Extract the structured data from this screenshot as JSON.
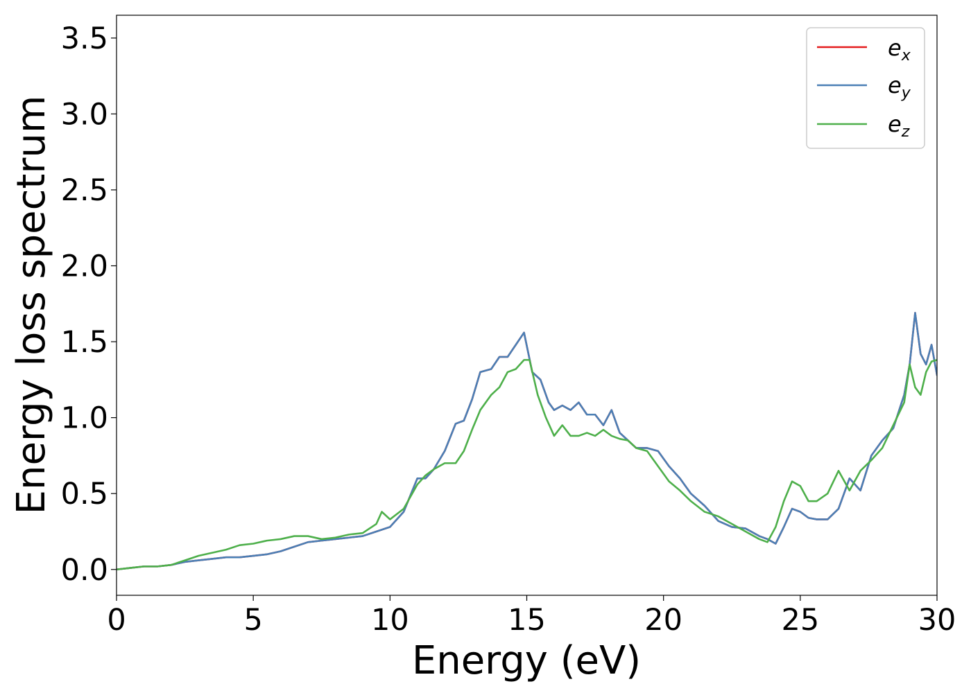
{
  "chart_data": {
    "type": "line",
    "title": "",
    "xlabel": "Energy (eV)",
    "ylabel": "Energy loss spectrum",
    "xlim": [
      0,
      30
    ],
    "ylim": [
      -0.17,
      3.65
    ],
    "xticks": [
      0,
      5,
      10,
      15,
      20,
      25,
      30
    ],
    "xtick_labels": [
      "0",
      "5",
      "10",
      "15",
      "20",
      "25",
      "30"
    ],
    "yticks": [
      0.0,
      0.5,
      1.0,
      1.5,
      2.0,
      2.5,
      3.0,
      3.5
    ],
    "ytick_labels": [
      "0.0",
      "0.5",
      "1.0",
      "1.5",
      "2.0",
      "2.5",
      "3.0",
      "3.5"
    ],
    "grid": false,
    "legend_position": "top-right",
    "series": [
      {
        "name": "e_x",
        "label_main": "e",
        "label_sub": "x",
        "color": "#e41a1c",
        "x": [
          0,
          0.5,
          1,
          1.5,
          2,
          2.5,
          3,
          3.5,
          4,
          4.5,
          5,
          5.5,
          6,
          6.5,
          7,
          7.5,
          8,
          8.5,
          9,
          9.5,
          10,
          10.5,
          11,
          11.3,
          11.6,
          12,
          12.4,
          12.7,
          13,
          13.3,
          13.7,
          14,
          14.3,
          14.6,
          14.9,
          15.2,
          15.5,
          15.8,
          16,
          16.3,
          16.6,
          16.9,
          17.2,
          17.5,
          17.8,
          18.1,
          18.4,
          18.7,
          19,
          19.4,
          19.8,
          20.2,
          20.6,
          21,
          21.5,
          22,
          22.5,
          23,
          23.5,
          23.8,
          24.1,
          24.4,
          24.7,
          25,
          25.3,
          25.6,
          26,
          26.4,
          26.8,
          27.2,
          27.6,
          28,
          28.4,
          28.8,
          29,
          29.2,
          29.4,
          29.6,
          29.8,
          30
        ],
        "y": [
          0.0,
          0.01,
          0.02,
          0.02,
          0.03,
          0.05,
          0.06,
          0.07,
          0.08,
          0.08,
          0.09,
          0.1,
          0.12,
          0.15,
          0.18,
          0.19,
          0.2,
          0.21,
          0.22,
          0.25,
          0.28,
          0.38,
          0.6,
          0.6,
          0.66,
          0.78,
          0.96,
          0.98,
          1.12,
          1.3,
          1.32,
          1.4,
          1.4,
          1.48,
          1.56,
          1.3,
          1.25,
          1.1,
          1.05,
          1.08,
          1.05,
          1.1,
          1.02,
          1.02,
          0.95,
          1.05,
          0.9,
          0.85,
          0.8,
          0.8,
          0.78,
          0.68,
          0.6,
          0.5,
          0.42,
          0.32,
          0.28,
          0.27,
          0.22,
          0.2,
          0.17,
          0.28,
          0.4,
          0.38,
          0.34,
          0.33,
          0.33,
          0.4,
          0.6,
          0.52,
          0.75,
          0.85,
          0.93,
          1.15,
          1.35,
          1.69,
          1.42,
          1.35,
          1.48,
          1.28
        ]
      },
      {
        "name": "e_y",
        "label_main": "e",
        "label_sub": "y",
        "color": "#4a7fb5",
        "x": [
          0,
          0.5,
          1,
          1.5,
          2,
          2.5,
          3,
          3.5,
          4,
          4.5,
          5,
          5.5,
          6,
          6.5,
          7,
          7.5,
          8,
          8.5,
          9,
          9.5,
          10,
          10.5,
          11,
          11.3,
          11.6,
          12,
          12.4,
          12.7,
          13,
          13.3,
          13.7,
          14,
          14.3,
          14.6,
          14.9,
          15.2,
          15.5,
          15.8,
          16,
          16.3,
          16.6,
          16.9,
          17.2,
          17.5,
          17.8,
          18.1,
          18.4,
          18.7,
          19,
          19.4,
          19.8,
          20.2,
          20.6,
          21,
          21.5,
          22,
          22.5,
          23,
          23.5,
          23.8,
          24.1,
          24.4,
          24.7,
          25,
          25.3,
          25.6,
          26,
          26.4,
          26.8,
          27.2,
          27.6,
          28,
          28.4,
          28.8,
          29,
          29.2,
          29.4,
          29.6,
          29.8,
          30
        ],
        "y": [
          0.0,
          0.01,
          0.02,
          0.02,
          0.03,
          0.05,
          0.06,
          0.07,
          0.08,
          0.08,
          0.09,
          0.1,
          0.12,
          0.15,
          0.18,
          0.19,
          0.2,
          0.21,
          0.22,
          0.25,
          0.28,
          0.38,
          0.6,
          0.6,
          0.66,
          0.78,
          0.96,
          0.98,
          1.12,
          1.3,
          1.32,
          1.4,
          1.4,
          1.48,
          1.56,
          1.3,
          1.25,
          1.1,
          1.05,
          1.08,
          1.05,
          1.1,
          1.02,
          1.02,
          0.95,
          1.05,
          0.9,
          0.85,
          0.8,
          0.8,
          0.78,
          0.68,
          0.6,
          0.5,
          0.42,
          0.32,
          0.28,
          0.27,
          0.22,
          0.2,
          0.17,
          0.28,
          0.4,
          0.38,
          0.34,
          0.33,
          0.33,
          0.4,
          0.6,
          0.52,
          0.75,
          0.85,
          0.93,
          1.15,
          1.35,
          1.69,
          1.42,
          1.35,
          1.48,
          1.28
        ]
      },
      {
        "name": "e_z",
        "label_main": "e",
        "label_sub": "z",
        "color": "#4daf4a",
        "x": [
          0,
          0.5,
          1,
          1.5,
          2,
          2.5,
          3,
          3.5,
          4,
          4.5,
          5,
          5.5,
          6,
          6.5,
          7,
          7.5,
          8,
          8.5,
          9,
          9.5,
          9.7,
          10,
          10.5,
          11,
          11.3,
          11.6,
          12,
          12.4,
          12.7,
          13,
          13.3,
          13.7,
          14,
          14.3,
          14.6,
          14.9,
          15.1,
          15.4,
          15.7,
          16,
          16.3,
          16.6,
          16.9,
          17.2,
          17.5,
          17.8,
          18.1,
          18.4,
          18.7,
          19,
          19.4,
          19.8,
          20.2,
          20.6,
          21,
          21.5,
          22,
          22.5,
          23,
          23.5,
          23.8,
          24.1,
          24.4,
          24.7,
          25,
          25.3,
          25.6,
          26,
          26.4,
          26.8,
          27.2,
          27.6,
          28,
          28.4,
          28.8,
          29,
          29.2,
          29.4,
          29.6,
          29.8,
          30
        ],
        "y": [
          0.0,
          0.01,
          0.02,
          0.02,
          0.03,
          0.06,
          0.09,
          0.11,
          0.13,
          0.16,
          0.17,
          0.19,
          0.2,
          0.22,
          0.22,
          0.2,
          0.21,
          0.23,
          0.24,
          0.3,
          0.38,
          0.33,
          0.4,
          0.56,
          0.62,
          0.66,
          0.7,
          0.7,
          0.78,
          0.92,
          1.05,
          1.15,
          1.2,
          1.3,
          1.32,
          1.38,
          1.38,
          1.15,
          1.0,
          0.88,
          0.95,
          0.88,
          0.88,
          0.9,
          0.88,
          0.92,
          0.88,
          0.86,
          0.85,
          0.8,
          0.78,
          0.68,
          0.58,
          0.52,
          0.45,
          0.38,
          0.35,
          0.3,
          0.25,
          0.2,
          0.18,
          0.28,
          0.45,
          0.58,
          0.55,
          0.45,
          0.45,
          0.5,
          0.65,
          0.52,
          0.65,
          0.72,
          0.8,
          0.95,
          1.1,
          1.35,
          1.2,
          1.15,
          1.3,
          1.37,
          1.38
        ]
      }
    ]
  }
}
